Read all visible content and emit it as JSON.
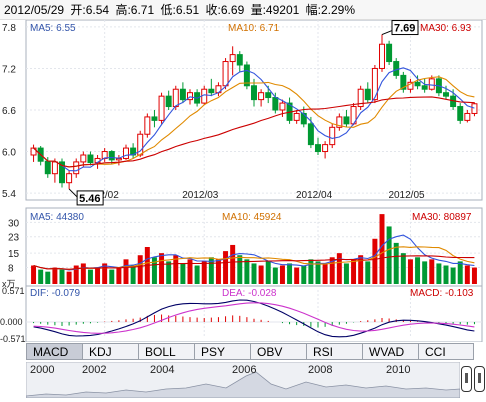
{
  "info_bar": {
    "date": "2012/05/29",
    "open": "开:6.54",
    "high": "高:6.71",
    "low": "低:6.51",
    "close": "收:6.69",
    "volume": "量:49201",
    "change": "幅:2.29%"
  },
  "price_panel": {
    "ma5": "MA5: 6.55",
    "ma10": "MA10: 6.71",
    "ma30": "MA30: 6.93",
    "y_ticks": [
      "7.8",
      "7.2",
      "6.6",
      "6.0",
      "5.4"
    ],
    "high_label": "7.69",
    "low_label": "5.46",
    "x_ticks": [
      "2012/02",
      "2012/03",
      "2012/04",
      "2012/05"
    ]
  },
  "volume_panel": {
    "ma5": "MA5: 44380",
    "ma10": "MA10: 45924",
    "ma30": "MA30: 80897",
    "y_ticks": [
      "30",
      "23",
      "15",
      "8"
    ],
    "unit": "x万"
  },
  "macd_panel": {
    "dif": "DIF: -0.079",
    "dea": "DEA: -0.028",
    "macd": "MACD: -0.103",
    "y_ticks": [
      "0.571",
      "0.000",
      "-0.571"
    ]
  },
  "tabs": [
    "MACD",
    "KDJ",
    "BOLL",
    "PSY",
    "OBV",
    "RSI",
    "WVAD",
    "CCI"
  ],
  "active_tab": "MACD",
  "timeline_years": [
    "2000",
    "2002",
    "2004",
    "2006",
    "2008",
    "2010"
  ],
  "colors": {
    "up": "#e00000",
    "down": "#009933",
    "ma5": "#3355dd",
    "ma10": "#e08a00",
    "ma30": "#cc0000",
    "dif": "#000066",
    "dea": "#cc33cc",
    "text_blue": "#3355aa",
    "text_orange": "#d07000",
    "text_red": "#cc0000"
  },
  "chart_data": {
    "type": "candlestick",
    "candles": [
      [
        5.95,
        6.1,
        5.85,
        6.05
      ],
      [
        6.05,
        6.08,
        5.8,
        5.86
      ],
      [
        5.86,
        5.92,
        5.62,
        5.68
      ],
      [
        5.68,
        5.9,
        5.55,
        5.85
      ],
      [
        5.85,
        5.9,
        5.48,
        5.55
      ],
      [
        5.55,
        5.72,
        5.46,
        5.68
      ],
      [
        5.68,
        5.9,
        5.62,
        5.85
      ],
      [
        5.85,
        6.0,
        5.78,
        5.95
      ],
      [
        5.95,
        6.0,
        5.8,
        5.84
      ],
      [
        5.84,
        5.95,
        5.75,
        5.9
      ],
      [
        5.9,
        6.05,
        5.85,
        6.0
      ],
      [
        6.0,
        6.02,
        5.82,
        5.88
      ],
      [
        5.88,
        5.95,
        5.8,
        5.9
      ],
      [
        5.9,
        6.1,
        5.88,
        6.05
      ],
      [
        6.05,
        6.12,
        5.9,
        5.95
      ],
      [
        5.95,
        6.3,
        5.92,
        6.25
      ],
      [
        6.25,
        6.55,
        6.2,
        6.5
      ],
      [
        6.5,
        6.6,
        6.35,
        6.45
      ],
      [
        6.45,
        6.85,
        6.4,
        6.8
      ],
      [
        6.8,
        6.88,
        6.6,
        6.65
      ],
      [
        6.65,
        6.95,
        6.6,
        6.9
      ],
      [
        6.9,
        7.0,
        6.7,
        6.75
      ],
      [
        6.75,
        6.9,
        6.68,
        6.85
      ],
      [
        6.85,
        6.9,
        6.65,
        6.7
      ],
      [
        6.7,
        6.95,
        6.68,
        6.9
      ],
      [
        6.9,
        7.05,
        6.8,
        6.85
      ],
      [
        6.85,
        7.0,
        6.8,
        6.95
      ],
      [
        6.95,
        7.35,
        6.9,
        7.3
      ],
      [
        7.3,
        7.52,
        7.1,
        7.4
      ],
      [
        7.4,
        7.45,
        7.15,
        7.25
      ],
      [
        7.25,
        7.3,
        6.9,
        6.95
      ],
      [
        6.95,
        7.05,
        6.65,
        6.75
      ],
      [
        6.75,
        6.9,
        6.65,
        6.85
      ],
      [
        6.85,
        6.95,
        6.7,
        6.78
      ],
      [
        6.78,
        6.85,
        6.55,
        6.6
      ],
      [
        6.6,
        6.75,
        6.5,
        6.7
      ],
      [
        6.7,
        6.78,
        6.4,
        6.45
      ],
      [
        6.45,
        6.6,
        6.4,
        6.55
      ],
      [
        6.55,
        6.65,
        6.35,
        6.4
      ],
      [
        6.4,
        6.5,
        6.05,
        6.1
      ],
      [
        6.1,
        6.2,
        5.95,
        6.0
      ],
      [
        6.0,
        6.15,
        5.9,
        6.1
      ],
      [
        6.1,
        6.4,
        6.05,
        6.35
      ],
      [
        6.35,
        6.55,
        6.3,
        6.5
      ],
      [
        6.5,
        6.6,
        6.35,
        6.4
      ],
      [
        6.4,
        6.7,
        6.38,
        6.65
      ],
      [
        6.65,
        6.95,
        6.6,
        6.9
      ],
      [
        6.9,
        7.0,
        6.7,
        6.75
      ],
      [
        6.75,
        7.25,
        6.7,
        7.2
      ],
      [
        7.2,
        7.69,
        7.15,
        7.55
      ],
      [
        7.55,
        7.6,
        7.25,
        7.3
      ],
      [
        7.3,
        7.35,
        7.05,
        7.1
      ],
      [
        7.1,
        7.15,
        6.85,
        6.9
      ],
      [
        6.9,
        7.05,
        6.85,
        7.0
      ],
      [
        7.0,
        7.1,
        6.9,
        6.95
      ],
      [
        6.95,
        7.05,
        6.85,
        6.9
      ],
      [
        6.9,
        7.1,
        6.88,
        7.05
      ],
      [
        7.05,
        7.1,
        6.8,
        6.85
      ],
      [
        6.85,
        6.95,
        6.75,
        6.8
      ],
      [
        6.8,
        6.9,
        6.6,
        6.65
      ],
      [
        6.65,
        6.7,
        6.4,
        6.45
      ],
      [
        6.45,
        6.6,
        6.42,
        6.55
      ],
      [
        6.55,
        6.71,
        6.51,
        6.69
      ]
    ],
    "volumes": [
      9,
      7,
      6,
      8,
      7,
      6,
      9,
      10,
      7,
      8,
      10,
      7,
      8,
      12,
      9,
      14,
      18,
      13,
      15,
      11,
      14,
      10,
      12,
      9,
      11,
      13,
      12,
      16,
      19,
      14,
      12,
      10,
      9,
      11,
      8,
      9,
      10,
      8,
      9,
      12,
      11,
      10,
      13,
      15,
      10,
      12,
      14,
      11,
      22,
      34,
      28,
      20,
      15,
      12,
      13,
      11,
      12,
      10,
      9,
      8,
      11,
      9,
      8
    ],
    "macd_bars": [
      -0.05,
      -0.08,
      -0.12,
      -0.15,
      -0.18,
      -0.16,
      -0.12,
      -0.08,
      -0.06,
      -0.03,
      0.02,
      0.05,
      0.08,
      0.12,
      0.15,
      0.2,
      0.28,
      0.32,
      0.34,
      0.3,
      0.28,
      0.25,
      0.22,
      0.2,
      0.18,
      0.2,
      0.22,
      0.26,
      0.3,
      0.28,
      0.22,
      0.15,
      0.1,
      0.05,
      0.0,
      -0.05,
      -0.1,
      -0.14,
      -0.18,
      -0.22,
      -0.25,
      -0.22,
      -0.18,
      -0.12,
      -0.08,
      -0.02,
      0.04,
      0.08,
      0.12,
      0.18,
      0.16,
      0.12,
      0.08,
      0.05,
      0.02,
      0.0,
      -0.02,
      -0.04,
      -0.06,
      -0.08,
      -0.1,
      -0.12,
      -0.1
    ]
  }
}
